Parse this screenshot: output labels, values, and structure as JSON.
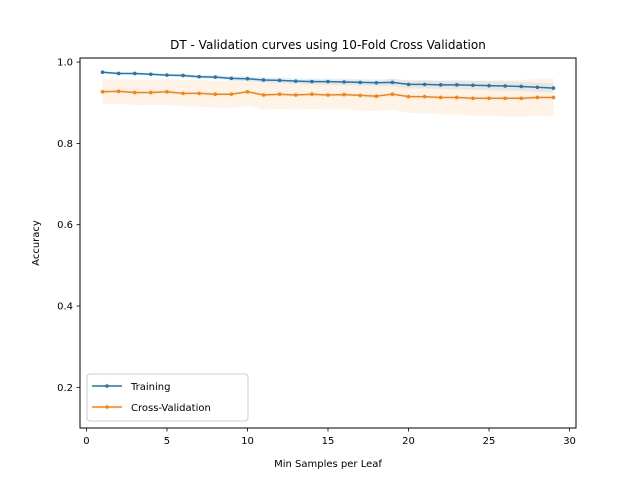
{
  "chart_data": {
    "type": "line",
    "title": "DT - Validation curves using 10-Fold Cross Validation",
    "xlabel": "Min Samples per Leaf",
    "ylabel": "Accuracy",
    "xlim": [
      -0.4,
      30.4
    ],
    "ylim": [
      0.1,
      1.01
    ],
    "xticks": [
      0,
      5,
      10,
      15,
      20,
      25,
      30
    ],
    "yticks": [
      0.2,
      0.4,
      0.6,
      0.8,
      1.0
    ],
    "ytick_labels": [
      "0.2",
      "0.4",
      "0.6",
      "0.8",
      "1.0"
    ],
    "grid": false,
    "legend_position": "lower-left",
    "x": [
      1,
      2,
      3,
      4,
      5,
      6,
      7,
      8,
      9,
      10,
      11,
      12,
      13,
      14,
      15,
      16,
      17,
      18,
      19,
      20,
      21,
      22,
      23,
      24,
      25,
      26,
      27,
      28,
      29
    ],
    "series": [
      {
        "name": "Training",
        "color": "#1f77b4",
        "values": [
          0.975,
          0.972,
          0.972,
          0.97,
          0.968,
          0.967,
          0.964,
          0.963,
          0.96,
          0.959,
          0.956,
          0.955,
          0.953,
          0.952,
          0.952,
          0.951,
          0.95,
          0.949,
          0.95,
          0.945,
          0.945,
          0.944,
          0.944,
          0.943,
          0.942,
          0.941,
          0.94,
          0.938,
          0.936
        ],
        "band_lower": [
          0.972,
          0.969,
          0.969,
          0.967,
          0.965,
          0.963,
          0.96,
          0.958,
          0.955,
          0.953,
          0.95,
          0.948,
          0.946,
          0.945,
          0.944,
          0.943,
          0.942,
          0.941,
          0.941,
          0.935,
          0.935,
          0.934,
          0.933,
          0.932,
          0.931,
          0.93,
          0.929,
          0.927,
          0.925
        ],
        "band_upper": [
          0.978,
          0.975,
          0.975,
          0.973,
          0.971,
          0.971,
          0.968,
          0.968,
          0.965,
          0.965,
          0.962,
          0.962,
          0.96,
          0.959,
          0.96,
          0.959,
          0.958,
          0.957,
          0.959,
          0.955,
          0.955,
          0.954,
          0.955,
          0.954,
          0.953,
          0.952,
          0.951,
          0.949,
          0.947
        ]
      },
      {
        "name": "Cross-Validation",
        "color": "#ff7f0e",
        "values": [
          0.927,
          0.928,
          0.925,
          0.925,
          0.927,
          0.923,
          0.923,
          0.921,
          0.921,
          0.927,
          0.919,
          0.921,
          0.919,
          0.921,
          0.919,
          0.92,
          0.918,
          0.916,
          0.921,
          0.915,
          0.915,
          0.913,
          0.913,
          0.911,
          0.911,
          0.911,
          0.911,
          0.913,
          0.913
        ],
        "band_lower": [
          0.897,
          0.898,
          0.894,
          0.894,
          0.895,
          0.891,
          0.89,
          0.888,
          0.887,
          0.893,
          0.883,
          0.885,
          0.883,
          0.885,
          0.883,
          0.884,
          0.881,
          0.879,
          0.883,
          0.875,
          0.874,
          0.872,
          0.871,
          0.868,
          0.867,
          0.866,
          0.866,
          0.867,
          0.866
        ],
        "band_upper": [
          0.957,
          0.958,
          0.956,
          0.956,
          0.959,
          0.955,
          0.956,
          0.954,
          0.955,
          0.961,
          0.955,
          0.957,
          0.955,
          0.957,
          0.955,
          0.956,
          0.955,
          0.953,
          0.959,
          0.955,
          0.956,
          0.954,
          0.955,
          0.954,
          0.955,
          0.956,
          0.956,
          0.959,
          0.96
        ]
      }
    ]
  }
}
